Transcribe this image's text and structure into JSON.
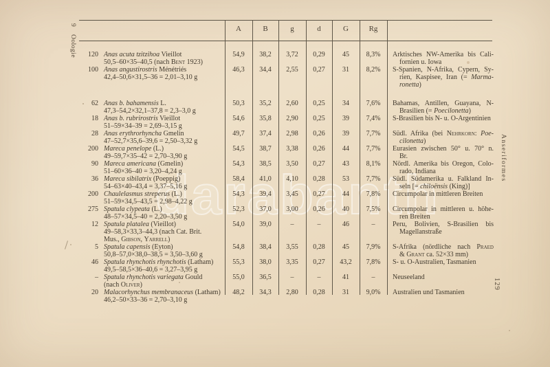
{
  "page": {
    "signature_number": "9",
    "signature_label": "Oologie",
    "right_margin_vertical": "Anseriformes",
    "page_number_vertical": "129",
    "watermark": "darabanth",
    "paper_color": "#ead9c1",
    "ink_color": "#423a2e"
  },
  "table": {
    "headers": [
      "A",
      "B",
      "g",
      "d",
      "G",
      "Rg"
    ],
    "rows": [
      {
        "count": "120",
        "name": [
          [
            {
              "t": "Anas acuta tzitzihoa",
              "i": 1
            },
            {
              "t": " Vieillot"
            }
          ],
          [
            {
              "t": "50,5–60×35–40,5 (nach "
            },
            {
              "t": "Bent",
              "sc": 1
            },
            {
              "t": " 1923)"
            }
          ]
        ],
        "vals": [
          "54,9",
          "38,2",
          "3,72",
          "0,29",
          "45",
          "8,3%"
        ],
        "dist": [
          [
            {
              "t": "Arktisches NW-Amerika bis Cali-"
            }
          ],
          [
            {
              "t": "fornien u. Iowa"
            }
          ]
        ],
        "gap": false
      },
      {
        "count": "100",
        "name": [
          [
            {
              "t": "Anas angustirostris",
              "i": 1
            },
            {
              "t": " Ménétriés"
            }
          ],
          [
            {
              "t": "42,4–50,6×31,5–36 = 2,01–3,10 g"
            }
          ]
        ],
        "vals": [
          "46,3",
          "34,4",
          "2,55",
          "0,27",
          "31",
          "8,2%"
        ],
        "dist": [
          [
            {
              "t": "S-Spanien, N-Afrika, Cypern, Sy-"
            }
          ],
          [
            {
              "t": "rien, Kaspisee, Iran (= "
            },
            {
              "t": "Marma-",
              "i": 1
            }
          ],
          [
            {
              "t": "ronetta",
              "i": 1
            },
            {
              "t": ")"
            }
          ]
        ],
        "gap": true
      },
      {
        "count": "62",
        "name": [
          [
            {
              "t": "Anas b. bahamensis",
              "i": 1
            },
            {
              "t": " L."
            }
          ],
          [
            {
              "t": "47,3–54,2×32,1–37,8 = 2,3–3,0 g"
            }
          ]
        ],
        "vals": [
          "50,3",
          "35,2",
          "2,60",
          "0,25",
          "34",
          "7,6%"
        ],
        "dist": [
          [
            {
              "t": "Bahamas, Antillen, Guayana, N-"
            }
          ],
          [
            {
              "t": "Brasilien (= "
            },
            {
              "t": "Poecilonetta",
              "i": 1
            },
            {
              "t": ")"
            }
          ]
        ],
        "gap": false
      },
      {
        "count": "18",
        "name": [
          [
            {
              "t": "Anas b. rubrirostris",
              "i": 1
            },
            {
              "t": " Vieillot"
            }
          ],
          [
            {
              "t": "51–59×34–39 = 2,69–3,15 g"
            }
          ]
        ],
        "vals": [
          "54,6",
          "35,8",
          "2,90",
          "0,25",
          "39",
          "7,4%"
        ],
        "dist": [
          [
            {
              "t": "S-Brasilien bis N- u. O-Argentinien"
            }
          ]
        ],
        "gap": false
      },
      {
        "count": "28",
        "name": [
          [
            {
              "t": "Anas erythrorhyncha",
              "i": 1
            },
            {
              "t": " Gmelin"
            }
          ],
          [
            {
              "t": "47–52,7×35,6–39,6 = 2,50–3,32 g"
            }
          ]
        ],
        "vals": [
          "49,7",
          "37,4",
          "2,98",
          "0,26",
          "39",
          "7,7%"
        ],
        "dist": [
          [
            {
              "t": "Südl. Afrika (bei "
            },
            {
              "t": "Nehrkorn",
              "sc": 1
            },
            {
              "t": ": "
            },
            {
              "t": "Poe-",
              "i": 1
            }
          ],
          [
            {
              "t": "cilonetta",
              "i": 1
            },
            {
              "t": ")"
            }
          ]
        ],
        "gap": false
      },
      {
        "count": "200",
        "name": [
          [
            {
              "t": "Mareca penelope",
              "i": 1
            },
            {
              "t": " (L.)"
            }
          ],
          [
            {
              "t": "49–59,7×35–42 = 2,70–3,90 g"
            }
          ]
        ],
        "vals": [
          "54,5",
          "38,7",
          "3,38",
          "0,26",
          "44",
          "7,7%"
        ],
        "dist": [
          [
            {
              "t": "Eurasien zwischen 50° u. 70° n."
            }
          ],
          [
            {
              "t": "Br."
            }
          ]
        ],
        "gap": false
      },
      {
        "count": "90",
        "name": [
          [
            {
              "t": "Mareca americana",
              "i": 1
            },
            {
              "t": " (Gmelin)"
            }
          ],
          [
            {
              "t": "51–60×36–40 = 3,20–4,24 g"
            }
          ]
        ],
        "vals": [
          "54,3",
          "38,5",
          "3,50",
          "0,27",
          "43",
          "8,1%"
        ],
        "dist": [
          [
            {
              "t": "Nördl. Amerika bis Oregon, Colo-"
            }
          ],
          [
            {
              "t": "rado, Indiana"
            }
          ]
        ],
        "gap": false
      },
      {
        "count": "36",
        "name": [
          [
            {
              "t": "Mareca sibilatrix",
              "i": 1
            },
            {
              "t": " (Poeppig)"
            }
          ],
          [
            {
              "t": "54–63×40–43,4 = 3,37–5,16 g"
            }
          ]
        ],
        "vals": [
          "58,4",
          "41,0",
          "4,10",
          "0,28",
          "53",
          "7,7%"
        ],
        "dist": [
          [
            {
              "t": "Südl. Südamerika u. Falkland In-"
            }
          ],
          [
            {
              "t": "seln [= "
            },
            {
              "t": "chiloënsis",
              "i": 1
            },
            {
              "t": " (King)]"
            }
          ]
        ],
        "gap": false
      },
      {
        "count": "200",
        "name": [
          [
            {
              "t": "Chaulelasmus streperus",
              "i": 1
            },
            {
              "t": " (L.)"
            }
          ],
          [
            {
              "t": "51–59×34,5–43,5 = 2,98–4,22 g"
            }
          ]
        ],
        "vals": [
          "54,3",
          "39,4",
          "3,45",
          "0,27",
          "44",
          "7,8%"
        ],
        "dist": [
          [
            {
              "t": "Circumpolar in mittleren Breiten"
            }
          ]
        ],
        "gap": false
      },
      {
        "count": "275",
        "name": [
          [
            {
              "t": "Spatula clypeata",
              "i": 1
            },
            {
              "t": " (L.)"
            }
          ],
          [
            {
              "t": "48–57×34,5–40 = 2,20–3,50 g"
            }
          ]
        ],
        "vals": [
          "52,3",
          "37,0",
          "3,00",
          "0,26",
          "40",
          "7,5%"
        ],
        "dist": [
          [
            {
              "t": "Circumpolar in mittleren u. höhe-"
            }
          ],
          [
            {
              "t": "ren Breiten"
            }
          ]
        ],
        "gap": false
      },
      {
        "count": "12",
        "name": [
          [
            {
              "t": "Spatula platalea",
              "i": 1
            },
            {
              "t": " (Vieillot)"
            }
          ],
          [
            {
              "t": "49–58,3×33,3–44,3 (nach Cat. Brit."
            }
          ],
          [
            {
              "t": "Mus., "
            },
            {
              "t": "Gibson",
              "sc": 1
            },
            {
              "t": ", "
            },
            {
              "t": "Yarrell",
              "sc": 1
            },
            {
              "t": ")"
            }
          ]
        ],
        "vals": [
          "54,0",
          "39,0",
          "–",
          "–",
          "46",
          "–"
        ],
        "dist": [
          [
            {
              "t": "Peru, Bolivien, S-Brasilien bis"
            }
          ],
          [
            {
              "t": "Magellanstraße"
            }
          ]
        ],
        "gap": false
      },
      {
        "count": "5",
        "name": [
          [
            {
              "t": "Spatula capensis",
              "i": 1
            },
            {
              "t": " (Eyton)"
            }
          ],
          [
            {
              "t": "50,8–57,0×38,0–38,5 = 3,50–3,60 g"
            }
          ]
        ],
        "vals": [
          "54,8",
          "38,4",
          "3,55",
          "0,28",
          "45",
          "7,9%"
        ],
        "dist": [
          [
            {
              "t": "S-Afrika (nördliche nach "
            },
            {
              "t": "Praed",
              "sc": 1
            }
          ],
          [
            {
              "t": "& "
            },
            {
              "t": "Grant",
              "sc": 1
            },
            {
              "t": " ca. 52×33 mm)"
            }
          ]
        ],
        "gap": false
      },
      {
        "count": "46",
        "name": [
          [
            {
              "t": "Spatula rhynchotis rhynchotis",
              "i": 1
            },
            {
              "t": " (Latham)"
            }
          ],
          [
            {
              "t": "49,5–58,5×36–40,6 = 3,27–3,95 g"
            }
          ]
        ],
        "vals": [
          "55,3",
          "38,0",
          "3,35",
          "0,27",
          "43,2",
          "7,8%"
        ],
        "dist": [
          [
            {
              "t": "S- u. O-Australien, Tasmanien"
            }
          ]
        ],
        "gap": false
      },
      {
        "count": "–",
        "name": [
          [
            {
              "t": "Spatula rhynchotis variegata",
              "i": 1
            },
            {
              "t": " Gould"
            }
          ],
          [
            {
              "t": "(nach "
            },
            {
              "t": "Oliver",
              "sc": 1
            },
            {
              "t": ")"
            }
          ]
        ],
        "vals": [
          "55,0",
          "36,5",
          "–",
          "–",
          "41",
          "–"
        ],
        "dist": [
          [
            {
              "t": "Neuseeland"
            }
          ]
        ],
        "gap": false
      },
      {
        "count": "20",
        "name": [
          [
            {
              "t": "Malacorhynchus membranaceus",
              "i": 1
            },
            {
              "t": " (Latham)"
            }
          ],
          [
            {
              "t": "46,2–50×33–36 = 2,70–3,10 g"
            }
          ]
        ],
        "vals": [
          "48,2",
          "34,3",
          "2,80",
          "0,28",
          "31",
          "9,0%"
        ],
        "dist": [
          [
            {
              "t": "Australien und Tasmanien"
            }
          ]
        ],
        "gap": false
      }
    ]
  }
}
